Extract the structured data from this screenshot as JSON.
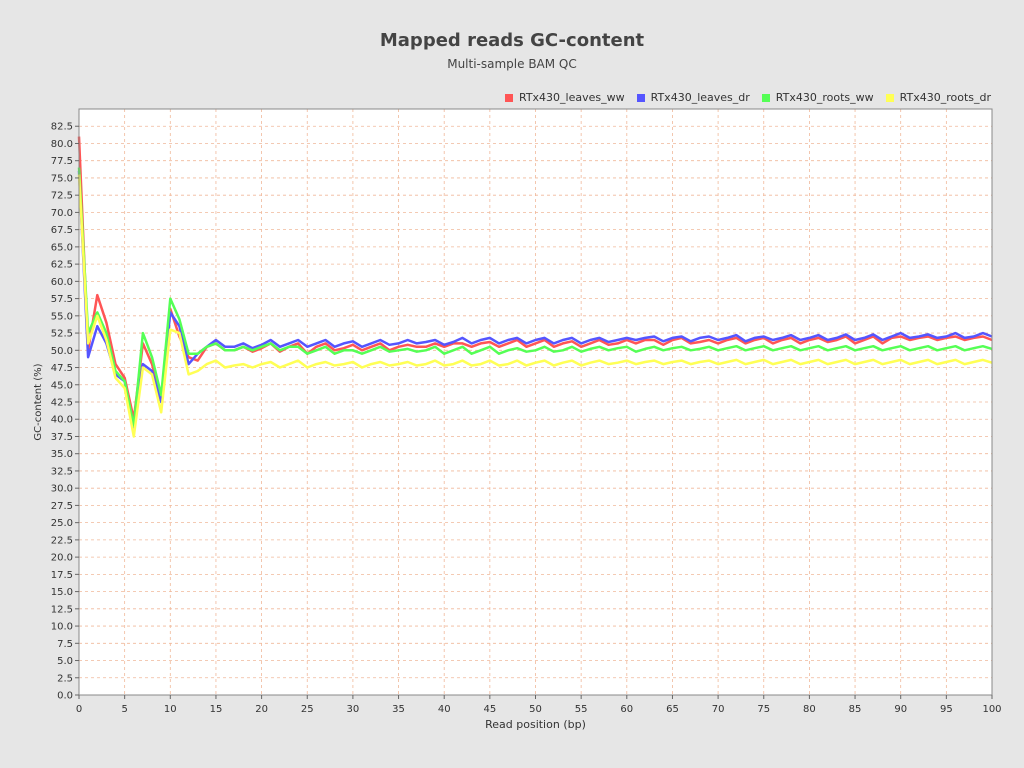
{
  "chart_data": {
    "type": "line",
    "title": "Mapped reads GC-content",
    "subtitle": "Multi-sample BAM QC",
    "xlabel": "Read position (bp)",
    "ylabel": "GC-content (%)",
    "xlim": [
      0,
      100
    ],
    "ylim": [
      0,
      85
    ],
    "xticks": [
      0,
      5,
      10,
      15,
      20,
      25,
      30,
      35,
      40,
      45,
      50,
      55,
      60,
      65,
      70,
      75,
      80,
      85,
      90,
      95,
      100
    ],
    "yticks": [
      0.0,
      2.5,
      5.0,
      7.5,
      10.0,
      12.5,
      15.0,
      17.5,
      20.0,
      22.5,
      25.0,
      27.5,
      30.0,
      32.5,
      35.0,
      37.5,
      40.0,
      42.5,
      45.0,
      47.5,
      50.0,
      52.5,
      55.0,
      57.5,
      60.0,
      62.5,
      65.0,
      67.5,
      70.0,
      72.5,
      75.0,
      77.5,
      80.0,
      82.5
    ],
    "grid": true,
    "legend_position": "top-right",
    "background": "#ffffff",
    "grid_color": "#f0b89a",
    "x": [
      0,
      1,
      2,
      3,
      4,
      5,
      6,
      7,
      8,
      9,
      10,
      11,
      12,
      13,
      14,
      15,
      16,
      17,
      18,
      19,
      20,
      21,
      22,
      23,
      24,
      25,
      26,
      27,
      28,
      29,
      30,
      31,
      32,
      33,
      34,
      35,
      36,
      37,
      38,
      39,
      40,
      41,
      42,
      43,
      44,
      45,
      46,
      47,
      48,
      49,
      50,
      51,
      52,
      53,
      54,
      55,
      56,
      57,
      58,
      59,
      60,
      61,
      62,
      63,
      64,
      65,
      66,
      67,
      68,
      69,
      70,
      71,
      72,
      73,
      74,
      75,
      76,
      77,
      78,
      79,
      80,
      81,
      82,
      83,
      84,
      85,
      86,
      87,
      88,
      89,
      90,
      91,
      92,
      93,
      94,
      95,
      96,
      97,
      98,
      99,
      100
    ],
    "series": [
      {
        "name": "RTx430_leaves_ww",
        "color": "#ff5555",
        "values": [
          81.0,
          50.0,
          58.0,
          54.0,
          48.0,
          46.0,
          40.0,
          51.0,
          48.0,
          43.0,
          56.0,
          52.0,
          49.0,
          48.5,
          50.5,
          51.0,
          50.0,
          50.0,
          50.5,
          49.8,
          50.3,
          51.0,
          49.8,
          50.5,
          51.0,
          49.5,
          50.5,
          51.0,
          50.0,
          50.3,
          50.8,
          50.0,
          50.5,
          51.0,
          50.0,
          50.5,
          50.8,
          50.5,
          50.5,
          51.0,
          50.5,
          51.0,
          51.0,
          50.5,
          51.0,
          51.2,
          50.5,
          51.0,
          51.5,
          50.5,
          51.0,
          51.5,
          50.5,
          51.0,
          51.3,
          50.5,
          51.0,
          51.5,
          50.8,
          51.0,
          51.5,
          51.0,
          51.5,
          51.5,
          50.8,
          51.5,
          51.8,
          51.0,
          51.2,
          51.5,
          51.0,
          51.5,
          51.8,
          51.0,
          51.5,
          51.8,
          51.0,
          51.5,
          51.8,
          51.0,
          51.5,
          51.8,
          51.2,
          51.5,
          52.0,
          51.0,
          51.5,
          52.0,
          51.0,
          51.8,
          52.0,
          51.5,
          51.8,
          52.0,
          51.5,
          51.8,
          52.0,
          51.5,
          51.8,
          52.0,
          51.5
        ]
      },
      {
        "name": "RTx430_leaves_dr",
        "color": "#5555ff",
        "values": [
          76.0,
          49.0,
          53.5,
          51.0,
          46.5,
          45.5,
          38.5,
          48.0,
          47.0,
          42.5,
          55.5,
          53.5,
          48.0,
          49.5,
          50.5,
          51.5,
          50.5,
          50.5,
          51.0,
          50.3,
          50.8,
          51.5,
          50.5,
          51.0,
          51.5,
          50.5,
          51.0,
          51.5,
          50.5,
          51.0,
          51.3,
          50.5,
          51.0,
          51.5,
          50.8,
          51.0,
          51.5,
          51.0,
          51.2,
          51.5,
          50.8,
          51.2,
          51.8,
          51.0,
          51.5,
          51.8,
          51.0,
          51.5,
          51.8,
          51.0,
          51.5,
          51.8,
          51.0,
          51.5,
          51.8,
          51.0,
          51.5,
          51.8,
          51.2,
          51.5,
          51.8,
          51.5,
          51.8,
          52.0,
          51.3,
          51.8,
          52.0,
          51.3,
          51.8,
          52.0,
          51.5,
          51.8,
          52.2,
          51.3,
          51.8,
          52.0,
          51.5,
          51.8,
          52.2,
          51.5,
          51.8,
          52.2,
          51.5,
          51.8,
          52.3,
          51.5,
          51.8,
          52.3,
          51.5,
          52.0,
          52.5,
          51.8,
          52.0,
          52.3,
          51.8,
          52.0,
          52.5,
          51.8,
          52.0,
          52.5,
          52.0
        ]
      },
      {
        "name": "RTx430_roots_ww",
        "color": "#55ff55",
        "values": [
          76.5,
          52.5,
          55.5,
          52.5,
          47.0,
          45.5,
          39.0,
          52.5,
          49.0,
          43.5,
          57.5,
          54.5,
          49.5,
          49.5,
          50.5,
          51.0,
          50.0,
          50.0,
          50.5,
          50.0,
          50.5,
          51.0,
          50.0,
          50.5,
          50.5,
          49.5,
          50.0,
          50.5,
          49.5,
          50.0,
          50.0,
          49.5,
          50.0,
          50.5,
          49.8,
          50.0,
          50.2,
          49.8,
          50.0,
          50.5,
          49.5,
          50.0,
          50.5,
          49.5,
          50.0,
          50.5,
          49.5,
          50.0,
          50.3,
          49.8,
          50.0,
          50.5,
          49.8,
          50.0,
          50.5,
          49.8,
          50.2,
          50.5,
          50.0,
          50.3,
          50.5,
          49.8,
          50.2,
          50.5,
          50.0,
          50.3,
          50.5,
          50.0,
          50.2,
          50.5,
          50.0,
          50.3,
          50.6,
          50.0,
          50.3,
          50.6,
          50.0,
          50.3,
          50.6,
          50.0,
          50.3,
          50.6,
          50.0,
          50.3,
          50.6,
          50.0,
          50.3,
          50.6,
          50.0,
          50.3,
          50.6,
          50.0,
          50.3,
          50.6,
          50.0,
          50.3,
          50.6,
          50.0,
          50.3,
          50.6,
          50.2
        ]
      },
      {
        "name": "RTx430_roots_dr",
        "color": "#ffff55",
        "values": [
          75.5,
          51.0,
          55.0,
          51.5,
          46.0,
          44.5,
          37.5,
          47.5,
          46.5,
          41.0,
          53.0,
          52.5,
          46.5,
          47.0,
          48.0,
          48.5,
          47.5,
          47.8,
          48.0,
          47.5,
          48.0,
          48.3,
          47.5,
          48.0,
          48.5,
          47.5,
          48.0,
          48.3,
          47.8,
          48.0,
          48.3,
          47.5,
          48.0,
          48.3,
          47.8,
          48.0,
          48.3,
          47.8,
          48.0,
          48.5,
          47.8,
          48.0,
          48.5,
          47.8,
          48.0,
          48.5,
          47.8,
          48.0,
          48.5,
          47.8,
          48.2,
          48.5,
          47.8,
          48.2,
          48.5,
          47.8,
          48.2,
          48.5,
          48.0,
          48.2,
          48.5,
          48.0,
          48.3,
          48.5,
          48.0,
          48.3,
          48.5,
          48.0,
          48.3,
          48.5,
          48.0,
          48.3,
          48.6,
          48.0,
          48.3,
          48.6,
          48.0,
          48.3,
          48.6,
          48.0,
          48.3,
          48.6,
          48.0,
          48.3,
          48.6,
          48.0,
          48.3,
          48.6,
          48.0,
          48.3,
          48.6,
          48.0,
          48.3,
          48.6,
          48.0,
          48.3,
          48.6,
          48.0,
          48.3,
          48.6,
          48.2
        ]
      }
    ]
  }
}
